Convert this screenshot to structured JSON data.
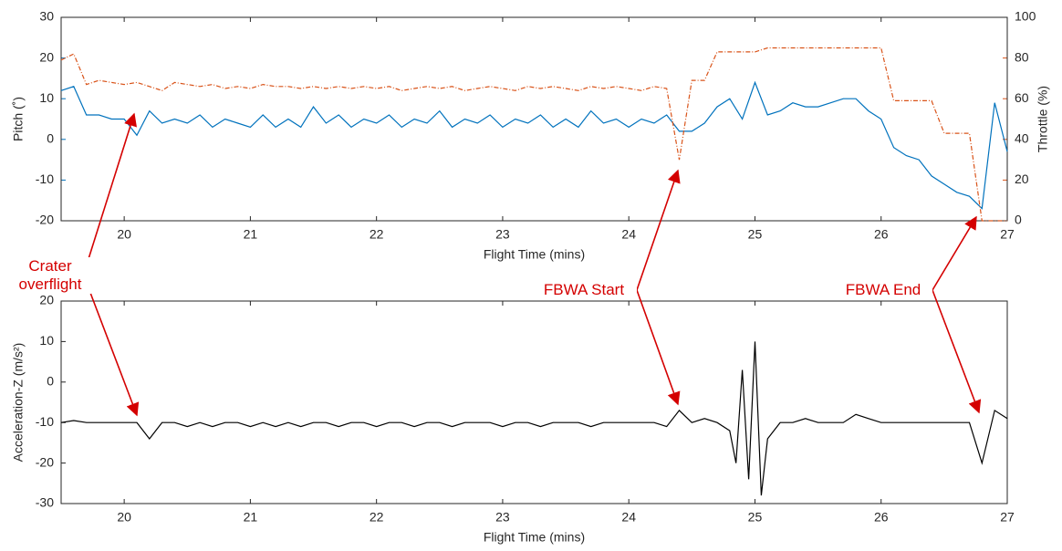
{
  "chart_data": [
    {
      "type": "line",
      "xlabel": "Flight Time (mins)",
      "ylabel": "Pitch (˚)",
      "y2label": "Throttle (%)",
      "xlim": [
        19.5,
        27
      ],
      "xticks": [
        20,
        21,
        22,
        23,
        24,
        25,
        26,
        27
      ],
      "ylim": [
        -20,
        30
      ],
      "yticks": [
        -20,
        -10,
        0,
        10,
        20,
        30
      ],
      "y2lim": [
        0,
        100
      ],
      "y2ticks": [
        0,
        20,
        40,
        60,
        80,
        100
      ],
      "x": [
        19.5,
        19.6,
        19.7,
        19.8,
        19.9,
        20.0,
        20.1,
        20.2,
        20.3,
        20.4,
        20.5,
        20.6,
        20.7,
        20.8,
        20.9,
        21.0,
        21.1,
        21.2,
        21.3,
        21.4,
        21.5,
        21.6,
        21.7,
        21.8,
        21.9,
        22.0,
        22.1,
        22.2,
        22.3,
        22.4,
        22.5,
        22.6,
        22.7,
        22.8,
        22.9,
        23.0,
        23.1,
        23.2,
        23.3,
        23.4,
        23.5,
        23.6,
        23.7,
        23.8,
        23.9,
        24.0,
        24.1,
        24.2,
        24.3,
        24.4,
        24.5,
        24.6,
        24.7,
        24.8,
        24.9,
        25.0,
        25.1,
        25.2,
        25.3,
        25.4,
        25.5,
        25.6,
        25.7,
        25.8,
        25.9,
        26.0,
        26.1,
        26.2,
        26.3,
        26.4,
        26.5,
        26.6,
        26.7,
        26.8,
        26.9,
        27.0
      ],
      "series": [
        {
          "color": "#0072bd",
          "axis": "y",
          "line_style": "solid",
          "values": [
            12,
            13,
            6,
            6,
            5,
            5,
            1,
            7,
            4,
            5,
            4,
            6,
            3,
            5,
            4,
            3,
            6,
            3,
            5,
            3,
            8,
            4,
            6,
            3,
            5,
            4,
            6,
            3,
            5,
            4,
            7,
            3,
            5,
            4,
            6,
            3,
            5,
            4,
            6,
            3,
            5,
            3,
            7,
            4,
            5,
            3,
            5,
            4,
            6,
            2,
            2,
            4,
            8,
            10,
            5,
            14,
            6,
            7,
            9,
            8,
            8,
            9,
            10,
            10,
            7,
            5,
            -2,
            -4,
            -5,
            -9,
            -11,
            -13,
            -14,
            -17,
            9,
            -3
          ]
        },
        {
          "color": "#d95319",
          "axis": "y2",
          "line_style": "dashdot",
          "values": [
            79,
            82,
            67,
            69,
            68,
            67,
            68,
            66,
            64,
            68,
            67,
            66,
            67,
            65,
            66,
            65,
            67,
            66,
            66,
            65,
            66,
            65,
            66,
            65,
            66,
            65,
            66,
            64,
            65,
            66,
            65,
            66,
            64,
            65,
            66,
            65,
            64,
            66,
            65,
            66,
            65,
            64,
            66,
            65,
            66,
            65,
            64,
            66,
            65,
            30,
            69,
            69,
            83,
            83,
            83,
            83,
            85,
            85,
            85,
            85,
            85,
            85,
            85,
            85,
            85,
            85,
            59,
            59,
            59,
            59,
            43,
            43,
            43,
            0,
            0,
            0
          ]
        }
      ]
    },
    {
      "type": "line",
      "xlabel": "Flight Time (mins)",
      "ylabel": "Acceleration-Z (m/s²)",
      "xlim": [
        19.5,
        27
      ],
      "xticks": [
        20,
        21,
        22,
        23,
        24,
        25,
        26,
        27
      ],
      "ylim": [
        -30,
        20
      ],
      "yticks": [
        -30,
        -20,
        -10,
        0,
        10,
        20
      ],
      "x": [
        19.5,
        19.6,
        19.7,
        19.8,
        19.9,
        20.0,
        20.1,
        20.2,
        20.3,
        20.4,
        20.5,
        20.6,
        20.7,
        20.8,
        20.9,
        21.0,
        21.1,
        21.2,
        21.3,
        21.4,
        21.5,
        21.6,
        21.7,
        21.8,
        21.9,
        22.0,
        22.1,
        22.2,
        22.3,
        22.4,
        22.5,
        22.6,
        22.7,
        22.8,
        22.9,
        23.0,
        23.1,
        23.2,
        23.3,
        23.4,
        23.5,
        23.6,
        23.7,
        23.8,
        23.9,
        24.0,
        24.1,
        24.2,
        24.3,
        24.4,
        24.5,
        24.6,
        24.7,
        24.8,
        24.85,
        24.9,
        24.95,
        25.0,
        25.05,
        25.1,
        25.2,
        25.3,
        25.4,
        25.5,
        25.6,
        25.7,
        25.8,
        25.9,
        26.0,
        26.1,
        26.2,
        26.3,
        26.4,
        26.5,
        26.6,
        26.7,
        26.8,
        26.9,
        27.0
      ],
      "series": [
        {
          "color": "#000000",
          "axis": "y",
          "line_style": "solid",
          "values": [
            -10,
            -9.5,
            -10,
            -10,
            -10,
            -10,
            -10,
            -14,
            -10,
            -10,
            -11,
            -10,
            -11,
            -10,
            -10,
            -11,
            -10,
            -11,
            -10,
            -11,
            -10,
            -10,
            -11,
            -10,
            -10,
            -11,
            -10,
            -10,
            -11,
            -10,
            -10,
            -11,
            -10,
            -10,
            -10,
            -11,
            -10,
            -10,
            -11,
            -10,
            -10,
            -10,
            -11,
            -10,
            -10,
            -10,
            -10,
            -10,
            -11,
            -7,
            -10,
            -9,
            -10,
            -12,
            -20,
            3,
            -24,
            10,
            -28,
            -14,
            -10,
            -10,
            -9,
            -10,
            -10,
            -10,
            -8,
            -9,
            -10,
            -10,
            -10,
            -10,
            -10,
            -10,
            -10,
            -10,
            -20,
            -7,
            -9
          ]
        }
      ]
    }
  ],
  "annotations": [
    {
      "text": "Crater overflight"
    },
    {
      "text": "FBWA Start"
    },
    {
      "text": "FBWA End"
    }
  ]
}
